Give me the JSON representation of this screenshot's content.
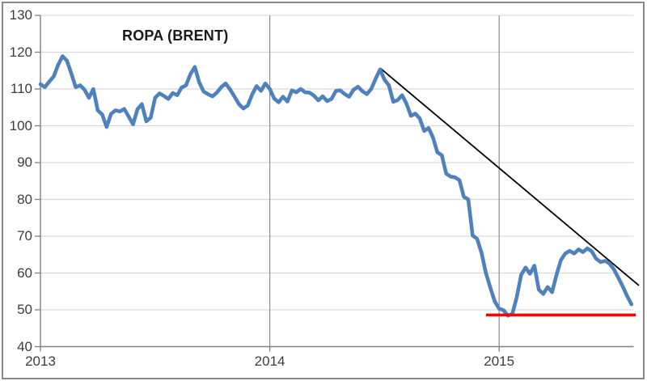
{
  "chart_data": {
    "type": "line",
    "title": "ROPA (BRENT)",
    "xlabel": "",
    "ylabel": "",
    "ylim": [
      40,
      130
    ],
    "y_ticks": [
      130,
      120,
      110,
      100,
      90,
      80,
      70,
      60,
      50,
      40
    ],
    "x_ticks": [
      {
        "label": "2013",
        "week_index": 0
      },
      {
        "label": "2014",
        "week_index": 52
      },
      {
        "label": "2015",
        "week_index": 104
      }
    ],
    "weeks_per_year": 52,
    "grid": "horizontal gridlines + vertical year gridlines, no legend",
    "legend": "none",
    "series": [
      {
        "name": "ROPA (BRENT)",
        "color": "#4F81BD",
        "frequency": "weekly",
        "start_year": 2013,
        "values": [
          111.3,
          110.5,
          112.0,
          113.4,
          116.5,
          118.9,
          117.7,
          114.2,
          110.5,
          111.0,
          109.8,
          107.6,
          110.0,
          104.2,
          103.1,
          99.7,
          103.2,
          104.2,
          103.9,
          104.6,
          102.5,
          100.4,
          104.5,
          105.9,
          101.2,
          102.2,
          107.6,
          108.8,
          108.1,
          107.3,
          108.9,
          108.3,
          110.4,
          111.0,
          114.0,
          116.0,
          111.8,
          109.3,
          108.6,
          108.0,
          109.0,
          110.5,
          111.5,
          109.9,
          107.9,
          105.9,
          104.7,
          105.5,
          108.5,
          110.8,
          109.5,
          111.5,
          110.0,
          107.4,
          106.4,
          107.9,
          106.6,
          109.6,
          109.1,
          110.0,
          109.1,
          109.0,
          108.2,
          106.9,
          108.0,
          106.7,
          107.3,
          109.5,
          109.6,
          108.6,
          107.9,
          109.8,
          110.6,
          109.4,
          108.6,
          110.0,
          112.8,
          115.3,
          112.5,
          111.0,
          106.5,
          107.0,
          108.3,
          106.0,
          102.7,
          103.3,
          102.0,
          98.6,
          99.4,
          96.8,
          92.8,
          92.0,
          87.0,
          86.2,
          86.0,
          85.2,
          80.7,
          80.0,
          70.2,
          69.3,
          65.5,
          60.0,
          56.0,
          52.3,
          50.3,
          49.9,
          48.4,
          48.9,
          53.5,
          59.5,
          61.5,
          59.8,
          62.0,
          55.5,
          54.3,
          56.2,
          54.8,
          59.5,
          63.5,
          65.3,
          66.0,
          65.3,
          66.4,
          65.7,
          66.7,
          65.9,
          63.9,
          63.0,
          63.3,
          62.6,
          61.0,
          58.8,
          56.4,
          53.8,
          51.5
        ]
      }
    ],
    "annotations": {
      "trendline": {
        "description": "straight resistance line from mid-2014 peak down to right edge",
        "color": "#000000",
        "from": {
          "week_index": 77,
          "value": 115.7
        },
        "to": {
          "week_index": 135.7,
          "value": 56.6
        }
      },
      "support_line": {
        "description": "horizontal support level under early-2015 lows",
        "color": "#FF0000",
        "value": 48.6,
        "from_week_index": 101,
        "to_week_index": 135
      }
    }
  },
  "colors": {
    "series_line": "#4F81BD",
    "trendline": "#000000",
    "support_line": "#FF0000",
    "grid_horizontal": "#D9D9D9",
    "grid_vertical_year": "#8C8C8C",
    "axis": "#808080",
    "tick_label": "#3D3D3D",
    "title": "#1A1A1A",
    "frame_border": "#8A8A8A",
    "background": "#FFFFFF"
  }
}
